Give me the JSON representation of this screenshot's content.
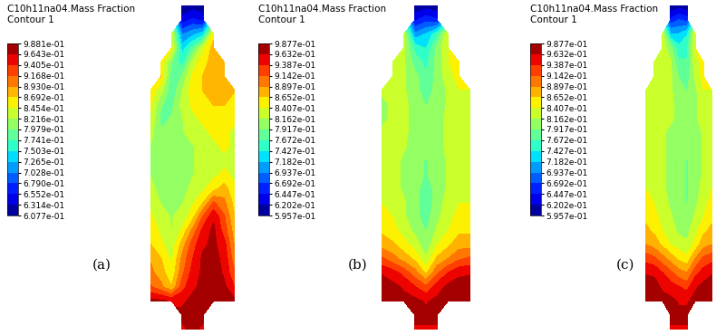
{
  "chart_data": [
    {
      "type": "heatmap",
      "title": "C10h11na04.Mass Fraction",
      "subtitle": "Contour 1",
      "annotation": "(a)",
      "tick_labels": false,
      "colorbar": {
        "range": [
          0.6077,
          0.9881
        ],
        "ticks": [
          {
            "value": 0.6077,
            "label": "6.077e-01"
          },
          {
            "value": 0.6314,
            "label": "6.314e-01"
          },
          {
            "value": 0.6552,
            "label": "6.552e-01"
          },
          {
            "value": 0.679,
            "label": "6.790e-01"
          },
          {
            "value": 0.7028,
            "label": "7.028e-01"
          },
          {
            "value": 0.7265,
            "label": "7.265e-01"
          },
          {
            "value": 0.7503,
            "label": "7.503e-01"
          },
          {
            "value": 0.7741,
            "label": "7.741e-01"
          },
          {
            "value": 0.7979,
            "label": "7.979e-01"
          },
          {
            "value": 0.8216,
            "label": "8.216e-01"
          },
          {
            "value": 0.8454,
            "label": "8.454e-01"
          },
          {
            "value": 0.8692,
            "label": "8.692e-01"
          },
          {
            "value": 0.893,
            "label": "8.930e-01"
          },
          {
            "value": 0.9168,
            "label": "9.168e-01"
          },
          {
            "value": 0.9405,
            "label": "9.405e-01"
          },
          {
            "value": 0.9643,
            "label": "9.643e-01"
          },
          {
            "value": 0.9881,
            "label": "9.881e-01"
          }
        ]
      },
      "cells": [
        [
          null,
          null,
          null,
          0.61,
          0.62,
          0.61,
          null,
          null,
          null
        ],
        [
          null,
          null,
          null,
          0.64,
          0.66,
          0.65,
          null,
          null,
          null
        ],
        [
          null,
          null,
          0.84,
          0.7,
          0.72,
          0.74,
          0.86,
          null,
          null
        ],
        [
          null,
          null,
          0.85,
          0.74,
          0.78,
          0.84,
          0.88,
          null,
          null
        ],
        [
          null,
          0.86,
          0.8,
          0.76,
          0.83,
          0.86,
          0.88,
          0.89,
          null
        ],
        [
          null,
          0.87,
          0.78,
          0.8,
          0.85,
          0.87,
          0.88,
          0.89,
          null
        ],
        [
          0.86,
          0.83,
          0.78,
          0.82,
          0.86,
          0.87,
          0.88,
          0.88,
          0.87
        ],
        [
          0.85,
          0.8,
          0.79,
          0.83,
          0.85,
          0.86,
          0.87,
          0.87,
          0.86
        ],
        [
          0.84,
          0.79,
          0.8,
          0.82,
          0.84,
          0.85,
          0.86,
          0.86,
          0.85
        ],
        [
          0.83,
          0.8,
          0.81,
          0.82,
          0.83,
          0.84,
          0.85,
          0.85,
          0.84
        ],
        [
          0.82,
          0.8,
          0.81,
          0.81,
          0.82,
          0.83,
          0.84,
          0.85,
          0.84
        ],
        [
          0.81,
          0.8,
          0.8,
          0.81,
          0.82,
          0.83,
          0.84,
          0.84,
          0.83
        ],
        [
          0.82,
          0.8,
          0.8,
          0.81,
          0.82,
          0.83,
          0.84,
          0.85,
          0.84
        ],
        [
          0.83,
          0.81,
          0.8,
          0.81,
          0.83,
          0.84,
          0.86,
          0.88,
          0.85
        ],
        [
          0.84,
          0.82,
          0.81,
          0.82,
          0.84,
          0.87,
          0.92,
          0.9,
          0.86
        ],
        [
          0.85,
          0.83,
          0.82,
          0.83,
          0.86,
          0.92,
          0.96,
          0.92,
          0.87
        ],
        [
          0.86,
          0.84,
          0.82,
          0.85,
          0.9,
          0.95,
          0.97,
          0.93,
          0.88
        ],
        [
          0.87,
          0.85,
          0.83,
          0.88,
          0.93,
          0.96,
          0.97,
          0.95,
          0.89
        ],
        [
          0.89,
          0.87,
          0.84,
          0.9,
          0.94,
          0.97,
          0.97,
          0.96,
          0.9
        ],
        [
          0.9,
          0.88,
          0.85,
          0.91,
          0.95,
          0.97,
          0.98,
          0.96,
          0.92
        ],
        [
          0.92,
          0.9,
          0.87,
          0.93,
          0.96,
          0.97,
          0.98,
          0.97,
          0.94
        ],
        [
          0.97,
          0.97,
          0.96,
          0.96,
          0.97,
          0.98,
          0.98,
          0.98,
          0.97
        ],
        [
          null,
          null,
          null,
          0.97,
          0.98,
          0.97,
          null,
          null,
          null
        ],
        [
          null,
          null,
          null,
          0.96,
          0.97,
          0.96,
          null,
          null,
          null
        ]
      ]
    },
    {
      "type": "heatmap",
      "title": "C10h11na04.Mass Fraction",
      "subtitle": "Contour 1",
      "annotation": "(b)",
      "tick_labels": false,
      "colorbar": {
        "range": [
          0.5957,
          0.9877
        ],
        "ticks": [
          {
            "value": 0.5957,
            "label": "5.957e-01"
          },
          {
            "value": 0.6202,
            "label": "6.202e-01"
          },
          {
            "value": 0.6447,
            "label": "6.447e-01"
          },
          {
            "value": 0.6692,
            "label": "6.692e-01"
          },
          {
            "value": 0.6937,
            "label": "6.937e-01"
          },
          {
            "value": 0.7182,
            "label": "7.182e-01"
          },
          {
            "value": 0.7427,
            "label": "7.427e-01"
          },
          {
            "value": 0.7672,
            "label": "7.672e-01"
          },
          {
            "value": 0.7917,
            "label": "7.917e-01"
          },
          {
            "value": 0.8162,
            "label": "8.162e-01"
          },
          {
            "value": 0.8407,
            "label": "8.407e-01"
          },
          {
            "value": 0.8652,
            "label": "8.652e-01"
          },
          {
            "value": 0.8897,
            "label": "8.897e-01"
          },
          {
            "value": 0.9142,
            "label": "9.142e-01"
          },
          {
            "value": 0.9387,
            "label": "9.387e-01"
          },
          {
            "value": 0.9632,
            "label": "9.632e-01"
          },
          {
            "value": 0.9877,
            "label": "9.877e-01"
          }
        ]
      },
      "cells": [
        [
          null,
          null,
          null,
          0.6,
          0.61,
          0.6,
          null,
          null,
          null
        ],
        [
          null,
          null,
          null,
          0.64,
          0.66,
          0.65,
          null,
          null,
          null
        ],
        [
          null,
          null,
          0.82,
          0.7,
          0.72,
          0.76,
          0.84,
          null,
          null
        ],
        [
          null,
          null,
          0.82,
          0.76,
          0.74,
          0.8,
          0.84,
          null,
          null
        ],
        [
          null,
          0.83,
          0.82,
          0.78,
          0.76,
          0.8,
          0.84,
          0.85,
          null
        ],
        [
          null,
          0.83,
          0.82,
          0.8,
          0.77,
          0.8,
          0.83,
          0.85,
          null
        ],
        [
          0.82,
          0.82,
          0.82,
          0.8,
          0.78,
          0.8,
          0.82,
          0.84,
          0.84
        ],
        [
          0.81,
          0.82,
          0.82,
          0.81,
          0.79,
          0.8,
          0.82,
          0.83,
          0.83
        ],
        [
          0.81,
          0.82,
          0.82,
          0.81,
          0.8,
          0.81,
          0.82,
          0.83,
          0.82
        ],
        [
          0.82,
          0.83,
          0.82,
          0.81,
          0.8,
          0.81,
          0.82,
          0.83,
          0.82
        ],
        [
          0.82,
          0.83,
          0.82,
          0.8,
          0.8,
          0.81,
          0.82,
          0.83,
          0.82
        ],
        [
          0.83,
          0.83,
          0.81,
          0.8,
          0.79,
          0.8,
          0.82,
          0.83,
          0.83
        ],
        [
          0.83,
          0.83,
          0.81,
          0.8,
          0.79,
          0.8,
          0.82,
          0.83,
          0.83
        ],
        [
          0.84,
          0.83,
          0.81,
          0.8,
          0.78,
          0.8,
          0.82,
          0.84,
          0.84
        ],
        [
          0.84,
          0.83,
          0.82,
          0.8,
          0.78,
          0.8,
          0.83,
          0.84,
          0.84
        ],
        [
          0.85,
          0.84,
          0.82,
          0.8,
          0.78,
          0.81,
          0.83,
          0.85,
          0.85
        ],
        [
          0.86,
          0.85,
          0.83,
          0.81,
          0.79,
          0.82,
          0.84,
          0.86,
          0.86
        ],
        [
          0.88,
          0.87,
          0.85,
          0.83,
          0.8,
          0.84,
          0.86,
          0.88,
          0.88
        ],
        [
          0.92,
          0.9,
          0.88,
          0.86,
          0.82,
          0.87,
          0.89,
          0.91,
          0.92
        ],
        [
          0.96,
          0.95,
          0.93,
          0.9,
          0.86,
          0.91,
          0.94,
          0.96,
          0.96
        ],
        [
          0.98,
          0.97,
          0.96,
          0.94,
          0.92,
          0.95,
          0.97,
          0.97,
          0.98
        ],
        [
          0.98,
          0.98,
          0.97,
          0.97,
          0.96,
          0.97,
          0.98,
          0.98,
          0.98
        ],
        [
          null,
          null,
          null,
          0.97,
          0.97,
          0.97,
          null,
          null,
          null
        ],
        [
          null,
          null,
          null,
          0.96,
          0.96,
          0.96,
          null,
          null,
          null
        ]
      ]
    },
    {
      "type": "heatmap",
      "title": "C10h11na04.Mass Fraction",
      "subtitle": "Contour 1",
      "annotation": "(c)",
      "tick_labels": false,
      "colorbar": {
        "range": [
          0.5957,
          0.9877
        ],
        "ticks": [
          {
            "value": 0.5957,
            "label": "5.957e-01"
          },
          {
            "value": 0.6202,
            "label": "6.202e-01"
          },
          {
            "value": 0.6447,
            "label": "6.447e-01"
          },
          {
            "value": 0.6692,
            "label": "6.692e-01"
          },
          {
            "value": 0.6937,
            "label": "6.937e-01"
          },
          {
            "value": 0.7182,
            "label": "7.182e-01"
          },
          {
            "value": 0.7427,
            "label": "7.427e-01"
          },
          {
            "value": 0.7672,
            "label": "7.672e-01"
          },
          {
            "value": 0.7917,
            "label": "7.917e-01"
          },
          {
            "value": 0.8162,
            "label": "8.162e-01"
          },
          {
            "value": 0.8407,
            "label": "8.407e-01"
          },
          {
            "value": 0.8652,
            "label": "8.652e-01"
          },
          {
            "value": 0.8897,
            "label": "8.897e-01"
          },
          {
            "value": 0.9142,
            "label": "9.142e-01"
          },
          {
            "value": 0.9387,
            "label": "9.387e-01"
          },
          {
            "value": 0.9632,
            "label": "9.632e-01"
          },
          {
            "value": 0.9877,
            "label": "9.877e-01"
          }
        ]
      },
      "cells": [
        [
          null,
          null,
          null,
          0.6,
          0.61,
          0.6,
          null,
          null,
          null
        ],
        [
          null,
          null,
          null,
          0.65,
          0.67,
          0.66,
          null,
          null,
          null
        ],
        [
          null,
          null,
          0.83,
          0.72,
          0.72,
          0.74,
          0.84,
          null,
          null
        ],
        [
          null,
          null,
          0.83,
          0.8,
          0.75,
          0.76,
          0.84,
          null,
          null
        ],
        [
          null,
          0.84,
          0.83,
          0.82,
          0.77,
          0.77,
          0.83,
          0.85,
          null
        ],
        [
          null,
          0.84,
          0.83,
          0.82,
          0.79,
          0.78,
          0.82,
          0.85,
          null
        ],
        [
          0.83,
          0.83,
          0.83,
          0.82,
          0.8,
          0.79,
          0.81,
          0.84,
          0.84
        ],
        [
          0.83,
          0.83,
          0.82,
          0.82,
          0.81,
          0.8,
          0.81,
          0.83,
          0.84
        ],
        [
          0.82,
          0.83,
          0.82,
          0.82,
          0.81,
          0.8,
          0.81,
          0.83,
          0.83
        ],
        [
          0.82,
          0.83,
          0.82,
          0.81,
          0.81,
          0.8,
          0.8,
          0.82,
          0.83
        ],
        [
          0.83,
          0.83,
          0.82,
          0.81,
          0.8,
          0.8,
          0.8,
          0.82,
          0.83
        ],
        [
          0.83,
          0.83,
          0.82,
          0.81,
          0.8,
          0.79,
          0.8,
          0.82,
          0.83
        ],
        [
          0.84,
          0.83,
          0.82,
          0.81,
          0.8,
          0.79,
          0.8,
          0.82,
          0.84
        ],
        [
          0.84,
          0.84,
          0.82,
          0.81,
          0.8,
          0.79,
          0.8,
          0.83,
          0.84
        ],
        [
          0.85,
          0.84,
          0.83,
          0.81,
          0.8,
          0.79,
          0.81,
          0.83,
          0.85
        ],
        [
          0.86,
          0.85,
          0.83,
          0.82,
          0.8,
          0.8,
          0.82,
          0.84,
          0.86
        ],
        [
          0.87,
          0.86,
          0.84,
          0.83,
          0.81,
          0.81,
          0.83,
          0.86,
          0.87
        ],
        [
          0.89,
          0.88,
          0.86,
          0.84,
          0.83,
          0.82,
          0.85,
          0.88,
          0.89
        ],
        [
          0.93,
          0.92,
          0.9,
          0.88,
          0.86,
          0.85,
          0.89,
          0.92,
          0.93
        ],
        [
          0.96,
          0.96,
          0.94,
          0.92,
          0.9,
          0.89,
          0.93,
          0.95,
          0.96
        ],
        [
          0.98,
          0.97,
          0.96,
          0.95,
          0.94,
          0.93,
          0.96,
          0.97,
          0.98
        ],
        [
          0.98,
          0.98,
          0.97,
          0.97,
          0.96,
          0.96,
          0.97,
          0.98,
          0.98
        ],
        [
          null,
          null,
          null,
          0.97,
          0.97,
          0.97,
          null,
          null,
          null
        ],
        [
          null,
          null,
          null,
          0.96,
          0.96,
          0.96,
          null,
          null,
          null
        ]
      ]
    }
  ]
}
